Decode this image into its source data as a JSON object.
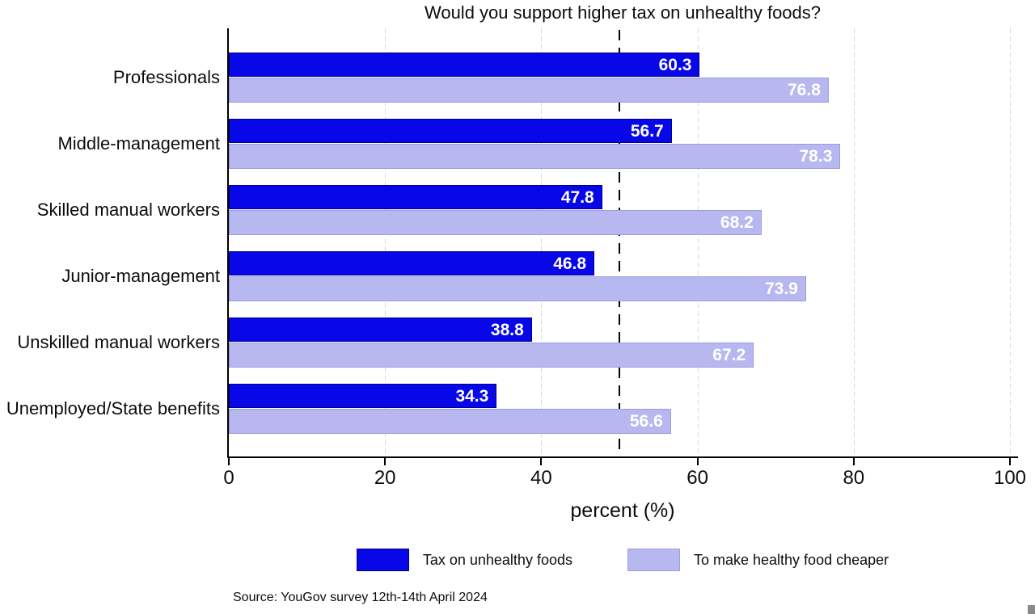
{
  "chart_data": {
    "type": "bar",
    "orientation": "horizontal",
    "title": "Would you support higher tax on unhealthy foods?",
    "xlabel": "percent (%)",
    "xlim": [
      0,
      100
    ],
    "xticks": [
      0,
      20,
      40,
      60,
      80,
      100
    ],
    "refline_x": 50,
    "grid": "dashed-vertical-at-ticks",
    "legend_position": "bottom-center",
    "categories": [
      "Professionals",
      "Middle-management",
      "Skilled manual workers",
      "Junior-management",
      "Unskilled manual workers",
      "Unemployed/State benefits"
    ],
    "series": [
      {
        "name": "Tax on unhealthy foods",
        "color": "#0707e8",
        "border_color": "#000090",
        "values": [
          60.3,
          56.7,
          47.8,
          46.8,
          38.8,
          34.3
        ]
      },
      {
        "name": "To make healthy food cheaper",
        "color": "#b7b8f0",
        "border_color": "#9b9ce0",
        "values": [
          76.8,
          78.3,
          68.2,
          73.9,
          67.2,
          56.6
        ]
      }
    ],
    "value_label_color": "#ffffff",
    "source": "Source: YouGov survey 12th-14th April 2024"
  }
}
